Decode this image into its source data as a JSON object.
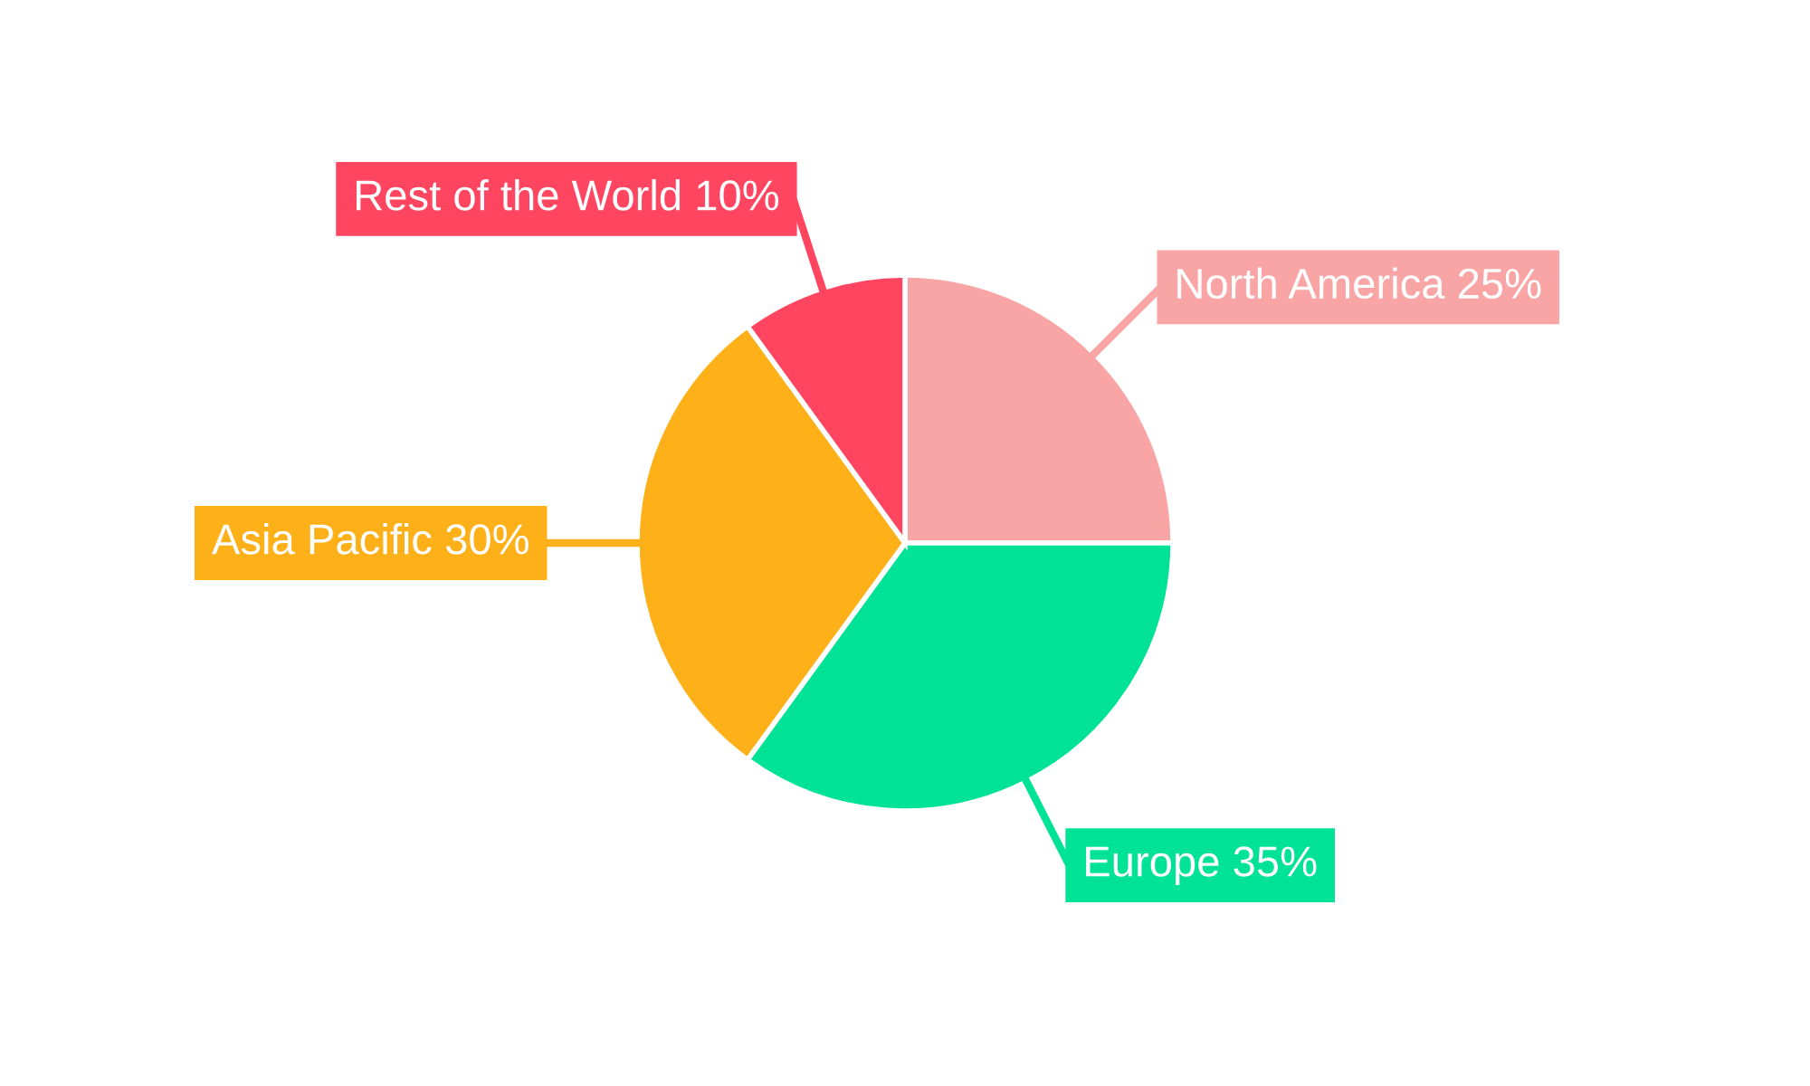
{
  "chart_data": {
    "type": "pie",
    "categories": [
      "North America",
      "Europe",
      "Asia Pacific",
      "Rest of the World"
    ],
    "values": [
      25,
      35,
      30,
      10
    ],
    "value_labels": [
      "25%",
      "35%",
      "30%",
      "10%"
    ],
    "colors": [
      "#f9a5a5",
      "#00e396",
      "#feb019",
      "#ff4560"
    ],
    "legend": false
  }
}
